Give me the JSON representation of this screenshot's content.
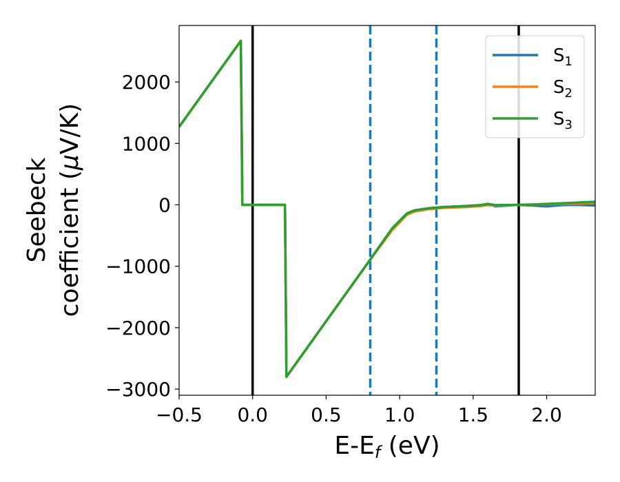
{
  "chart_data": {
    "type": "line",
    "xlabel": "E-E",
    "xlabel_sub": "f",
    "xlabel_unit": " (eV)",
    "ylabel_line1": "Seebeck",
    "ylabel_line2_prefix": "coefficient  (",
    "ylabel_mu": "μ",
    "ylabel_line2_suffix": "V/K)",
    "xlim": [
      -0.5,
      2.33
    ],
    "ylim": [
      -3100,
      2920
    ],
    "xticks": [
      -0.5,
      0.0,
      0.5,
      1.0,
      1.5,
      2.0
    ],
    "xtick_labels": [
      "−0.5",
      "0.0",
      "0.5",
      "1.0",
      "1.5",
      "2.0"
    ],
    "yticks": [
      -3000,
      -2000,
      -1000,
      0,
      1000,
      2000
    ],
    "ytick_labels": [
      "−3000",
      "−2000",
      "−1000",
      "0",
      "1000",
      "2000"
    ],
    "grid": false,
    "legend_position": "top-right",
    "vlines": [
      {
        "x": 0.0,
        "color": "#000000",
        "style": "solid"
      },
      {
        "x": 1.81,
        "color": "#000000",
        "style": "solid"
      },
      {
        "x": 0.8,
        "color": "#1f77b4",
        "style": "dashed"
      },
      {
        "x": 1.25,
        "color": "#1f77b4",
        "style": "dashed"
      }
    ],
    "series": [
      {
        "name": "S",
        "sub": "1",
        "color": "#1f77b4",
        "x": [
          -0.5,
          -0.08,
          -0.07,
          0.22,
          0.23,
          0.8,
          0.95,
          1.05,
          1.1,
          1.2,
          1.3,
          1.45,
          1.55,
          1.6,
          1.65,
          1.8,
          1.9,
          2.0,
          2.1,
          2.2,
          2.33
        ],
        "y": [
          1270,
          2670,
          0,
          0,
          -2800,
          -890,
          -380,
          -140,
          -90,
          -55,
          -35,
          -20,
          -5,
          15,
          -25,
          0,
          -10,
          -25,
          -5,
          0,
          -10
        ]
      },
      {
        "name": "S",
        "sub": "2",
        "color": "#ff7f0e",
        "x": [
          -0.5,
          -0.08,
          -0.07,
          0.22,
          0.23,
          0.8,
          0.95,
          1.05,
          1.1,
          1.2,
          1.3,
          1.45,
          1.55,
          1.6,
          1.65,
          1.8,
          1.9,
          2.0,
          2.1,
          2.2,
          2.33
        ],
        "y": [
          1270,
          2670,
          0,
          0,
          -2800,
          -890,
          -410,
          -160,
          -110,
          -70,
          -50,
          -35,
          -20,
          -5,
          -15,
          0,
          5,
          10,
          15,
          20,
          30
        ]
      },
      {
        "name": "S",
        "sub": "3",
        "color": "#2ca02c",
        "x": [
          -0.5,
          -0.08,
          -0.07,
          0.22,
          0.23,
          0.8,
          0.95,
          1.05,
          1.1,
          1.2,
          1.3,
          1.45,
          1.55,
          1.6,
          1.65,
          1.8,
          1.9,
          2.0,
          2.1,
          2.2,
          2.33
        ],
        "y": [
          1270,
          2670,
          0,
          0,
          -2800,
          -890,
          -380,
          -140,
          -90,
          -55,
          -35,
          -20,
          -5,
          15,
          -5,
          0,
          5,
          15,
          25,
          35,
          50
        ]
      }
    ]
  }
}
